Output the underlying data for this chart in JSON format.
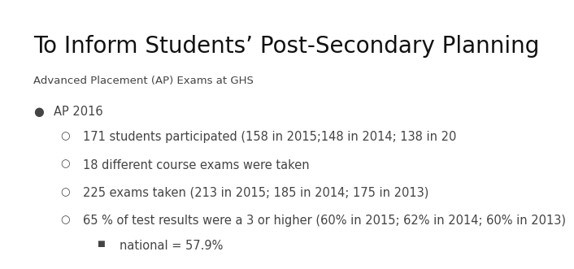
{
  "title": "To Inform Students’ Post-Secondary Planning",
  "subtitle": "Advanced Placement (AP) Exams at GHS",
  "bullet1_marker": "●",
  "bullet1": "AP 2016",
  "sub1": "171 students participated (158 in 2015;148 in 2014; 138 in 20",
  "sub2": "18 different course exams were taken",
  "sub3": "225 exams taken (213 in 2015; 185 in 2014; 175 in 2013)",
  "sub4": "65 % of test results were a 3 or higher (60% in 2015; 62% in 2014; 60% in 2013)",
  "sub4b": "national = 57.9%",
  "bg_color": "#ffffff",
  "title_color": "#111111",
  "body_color": "#444444",
  "title_fontsize": 20,
  "subtitle_fontsize": 9.5,
  "bullet_fontsize": 10.5,
  "sub_fontsize": 10.5
}
